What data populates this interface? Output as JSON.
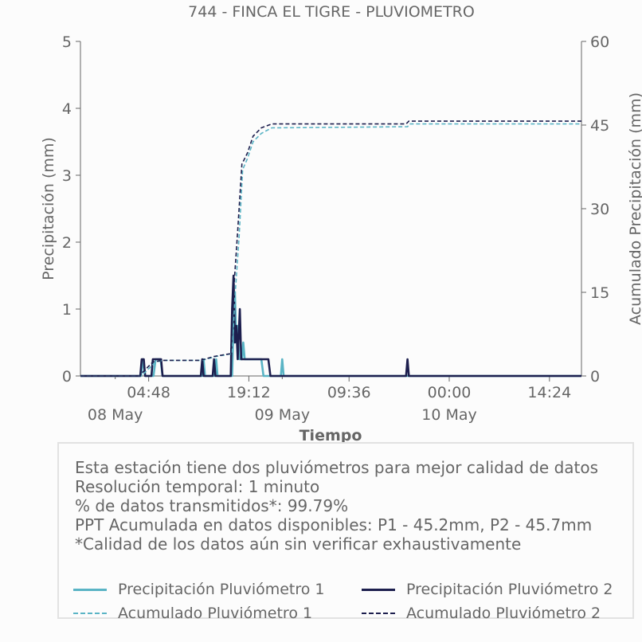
{
  "chart_data": {
    "type": "line",
    "title": "744 - FINCA EL TIGRE - PLUVIOMETRO",
    "xlabel": "Tiempo",
    "ylabel": "Precipitación (mm)",
    "y2label": "Acumulado Precipitación (mm)",
    "ylim": [
      0,
      5
    ],
    "y2lim": [
      0,
      60
    ],
    "yticks": [
      0,
      1,
      2,
      3,
      4,
      5
    ],
    "y2ticks": [
      0,
      15,
      30,
      45,
      60
    ],
    "x_unit": "hours since 08 May 00:00",
    "xlim": [
      -5,
      67
    ],
    "xticks": [
      {
        "x": 4.8,
        "label": "04:48"
      },
      {
        "x": 19.2,
        "label": "19:12"
      },
      {
        "x": 33.6,
        "label": "09:36"
      },
      {
        "x": 48,
        "label": "00:00"
      },
      {
        "x": 62.4,
        "label": "14:24"
      }
    ],
    "date_labels": [
      {
        "x": 0,
        "label": "08 May"
      },
      {
        "x": 24,
        "label": "09 May"
      },
      {
        "x": 48,
        "label": "10 May"
      }
    ],
    "grid": false,
    "legend_position": "bottom",
    "series": [
      {
        "name": "Precipitación Pluviómetro 1",
        "axis": "left",
        "style": "solid",
        "color": "#5ab4c5",
        "points": [
          [
            -5,
            0
          ],
          [
            3.7,
            0
          ],
          [
            4.0,
            0.25
          ],
          [
            4.3,
            0
          ],
          [
            5.5,
            0
          ],
          [
            5.8,
            0.25
          ],
          [
            6.5,
            0.25
          ],
          [
            6.8,
            0
          ],
          [
            12.5,
            0
          ],
          [
            12.7,
            0.25
          ],
          [
            12.9,
            0
          ],
          [
            14.3,
            0
          ],
          [
            14.5,
            0.25
          ],
          [
            14.7,
            0
          ],
          [
            16.8,
            0
          ],
          [
            17.0,
            0.75
          ],
          [
            17.2,
            1.25
          ],
          [
            17.4,
            0.5
          ],
          [
            17.6,
            0.75
          ],
          [
            17.8,
            0.25
          ],
          [
            18.2,
            0.25
          ],
          [
            18.4,
            0.5
          ],
          [
            18.6,
            0.25
          ],
          [
            20.5,
            0.25
          ],
          [
            21.0,
            0.25
          ],
          [
            21.3,
            0
          ],
          [
            23.8,
            0
          ],
          [
            24.0,
            0.25
          ],
          [
            24.2,
            0
          ],
          [
            67,
            0
          ]
        ]
      },
      {
        "name": "Precipitación Pluviómetro 2",
        "axis": "left",
        "style": "solid",
        "color": "#1d1f4e",
        "points": [
          [
            -5,
            0
          ],
          [
            3.6,
            0
          ],
          [
            3.8,
            0.25
          ],
          [
            4.1,
            0.25
          ],
          [
            4.3,
            0
          ],
          [
            5.2,
            0
          ],
          [
            5.4,
            0.25
          ],
          [
            6.6,
            0.25
          ],
          [
            6.8,
            0
          ],
          [
            12.3,
            0
          ],
          [
            12.5,
            0.25
          ],
          [
            12.7,
            0
          ],
          [
            14.0,
            0
          ],
          [
            14.2,
            0.25
          ],
          [
            14.4,
            0
          ],
          [
            16.6,
            0
          ],
          [
            16.8,
            1.0
          ],
          [
            17.0,
            1.5
          ],
          [
            17.2,
            0.5
          ],
          [
            17.4,
            0.75
          ],
          [
            17.6,
            0.25
          ],
          [
            17.9,
            1.0
          ],
          [
            18.1,
            0.25
          ],
          [
            20.0,
            0.25
          ],
          [
            21.0,
            0.25
          ],
          [
            22.0,
            0.25
          ],
          [
            22.3,
            0
          ],
          [
            41.8,
            0
          ],
          [
            42.0,
            0.25
          ],
          [
            42.2,
            0
          ],
          [
            67,
            0
          ]
        ]
      },
      {
        "name": "Acumulado Pluviómetro 1",
        "axis": "right",
        "style": "dashed",
        "color": "#5ab4c5",
        "points": [
          [
            -5,
            0
          ],
          [
            3.7,
            0
          ],
          [
            4.0,
            0.3
          ],
          [
            5.8,
            2.5
          ],
          [
            6.8,
            2.8
          ],
          [
            12.5,
            2.8
          ],
          [
            14.5,
            3.5
          ],
          [
            16.8,
            4
          ],
          [
            17.2,
            14
          ],
          [
            17.8,
            25
          ],
          [
            18.3,
            37
          ],
          [
            19.0,
            39
          ],
          [
            19.8,
            42
          ],
          [
            21.0,
            43.5
          ],
          [
            22.5,
            44.5
          ],
          [
            42.0,
            44.7
          ],
          [
            42.3,
            45.2
          ],
          [
            67,
            45.2
          ]
        ]
      },
      {
        "name": "Acumulado Pluviómetro 2",
        "axis": "right",
        "style": "dashed",
        "color": "#1d1f4e",
        "points": [
          [
            -5,
            0
          ],
          [
            3.6,
            0
          ],
          [
            3.8,
            0.5
          ],
          [
            5.4,
            2.5
          ],
          [
            6.8,
            2.8
          ],
          [
            12.3,
            2.8
          ],
          [
            14.2,
            3.5
          ],
          [
            16.6,
            4
          ],
          [
            17.0,
            15
          ],
          [
            17.6,
            26
          ],
          [
            18.2,
            38
          ],
          [
            19.0,
            40
          ],
          [
            19.8,
            43
          ],
          [
            21.0,
            44.5
          ],
          [
            22.5,
            45.2
          ],
          [
            41.8,
            45.2
          ],
          [
            42.2,
            45.7
          ],
          [
            67,
            45.7
          ]
        ]
      }
    ]
  },
  "info": {
    "lines": [
      "Esta estación tiene dos pluviómetros para mejor calidad de datos",
      "Resolución temporal: 1 minuto",
      "% de datos transmitidos*: 99.79%",
      "PPT Acumulada en datos disponibles: P1 - 45.2mm, P2 - 45.7mm",
      "*Calidad de los datos aún sin verificar exhaustivamente"
    ]
  },
  "legend": {
    "items": [
      {
        "label": "Precipitación Pluviómetro 1",
        "color": "#5ab4c5",
        "style": "solid"
      },
      {
        "label": "Precipitación Pluviómetro 2",
        "color": "#1d1f4e",
        "style": "solid"
      },
      {
        "label": "Acumulado Pluviómetro 1",
        "color": "#5ab4c5",
        "style": "dashed"
      },
      {
        "label": "Acumulado Pluviómetro 2",
        "color": "#1d1f4e",
        "style": "dashed"
      }
    ]
  }
}
